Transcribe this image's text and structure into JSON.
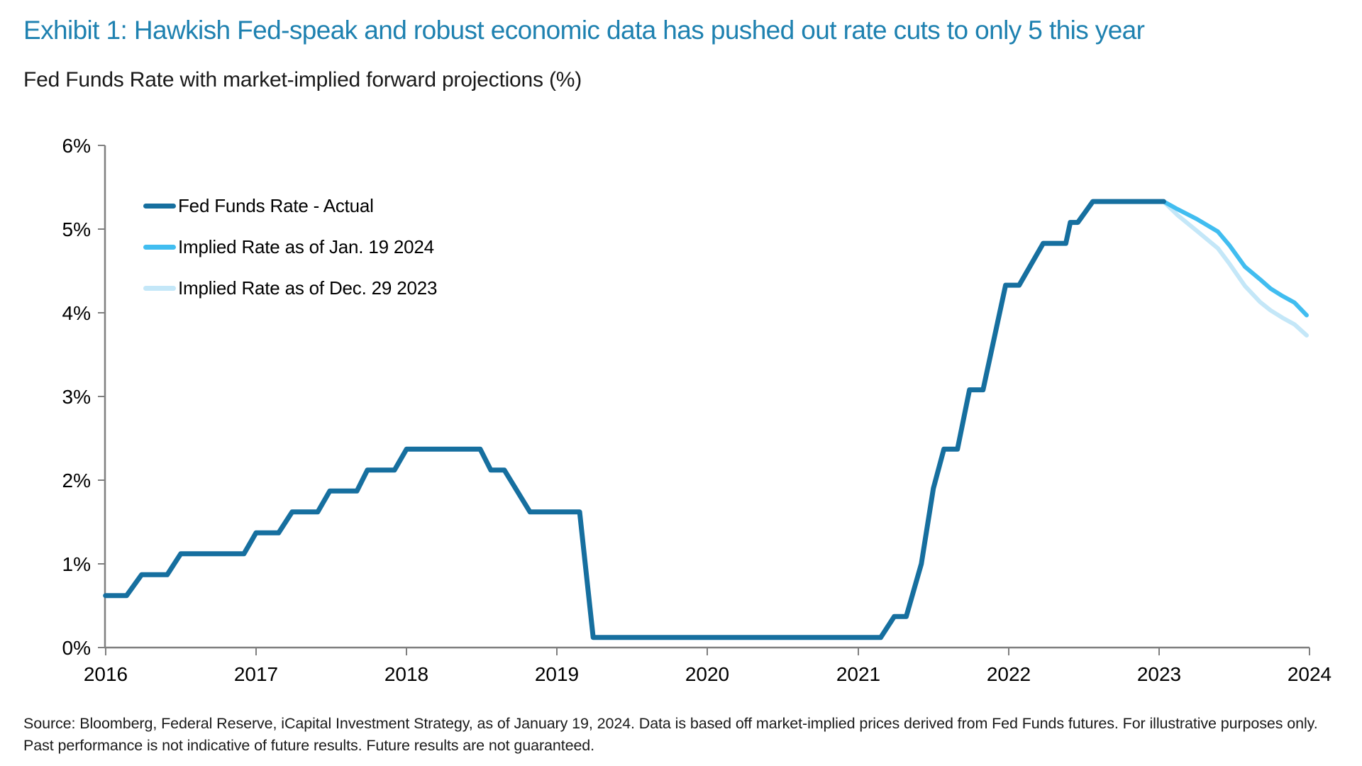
{
  "page": {
    "title": "Exhibit 1: Hawkish Fed-speak and robust economic data has pushed out rate cuts to only 5 this year",
    "subtitle": "Fed Funds Rate with market-implied forward projections (%)",
    "source_line1": "Source: Bloomberg, Federal Reserve, iCapital Investment Strategy, as of January 19, 2024. Data is based off market-implied prices derived from Fed Funds futures. For illustrative purposes only.",
    "source_line2": "Past performance is not indicative of future results. Future results are not guaranteed."
  },
  "colors": {
    "title_blue": "#1e81b0",
    "actual_line": "#166f9f",
    "implied_jan_line": "#41bdf0",
    "implied_dec_line": "#c4e7f8",
    "axis_gray": "#7f7f7f",
    "text_black": "#1a1a1a"
  },
  "chart_data": {
    "type": "line",
    "title": "Fed Funds Rate with market-implied forward projections (%)",
    "xlabel": "",
    "ylabel": "",
    "grid": false,
    "legend_position": "top-left inside plot",
    "x_axis": {
      "min": 2016,
      "max": 2024,
      "tick_labels": [
        "2016",
        "2017",
        "2018",
        "2019",
        "2020",
        "2021",
        "2022",
        "2023",
        "2024"
      ]
    },
    "y_axis": {
      "min": 0,
      "max": 6,
      "unit": "%",
      "tick_labels": [
        "0%",
        "1%",
        "2%",
        "3%",
        "4%",
        "5%",
        "6%"
      ]
    },
    "series": [
      {
        "name": "Fed Funds Rate - Actual",
        "color_key": "actual_line",
        "points": [
          [
            2016.0,
            0.62
          ],
          [
            2016.14,
            0.62
          ],
          [
            2016.24,
            0.87
          ],
          [
            2016.41,
            0.87
          ],
          [
            2016.5,
            1.12
          ],
          [
            2016.92,
            1.12
          ],
          [
            2017.0,
            1.37
          ],
          [
            2017.15,
            1.37
          ],
          [
            2017.24,
            1.62
          ],
          [
            2017.41,
            1.62
          ],
          [
            2017.49,
            1.87
          ],
          [
            2017.67,
            1.87
          ],
          [
            2017.74,
            2.12
          ],
          [
            2017.92,
            2.12
          ],
          [
            2018.0,
            2.37
          ],
          [
            2018.49,
            2.37
          ],
          [
            2018.56,
            2.12
          ],
          [
            2018.65,
            2.12
          ],
          [
            2018.82,
            1.62
          ],
          [
            2019.15,
            1.62
          ],
          [
            2019.24,
            0.12
          ],
          [
            2021.15,
            0.12
          ],
          [
            2021.24,
            0.37
          ],
          [
            2021.32,
            0.37
          ],
          [
            2021.42,
            1.0
          ],
          [
            2021.5,
            1.9
          ],
          [
            2021.57,
            2.37
          ],
          [
            2021.66,
            2.37
          ],
          [
            2021.74,
            3.08
          ],
          [
            2021.83,
            3.08
          ],
          [
            2021.98,
            4.33
          ],
          [
            2022.07,
            4.33
          ],
          [
            2022.23,
            4.83
          ],
          [
            2022.38,
            4.83
          ],
          [
            2022.41,
            5.08
          ],
          [
            2022.46,
            5.08
          ],
          [
            2022.56,
            5.33
          ],
          [
            2023.03,
            5.33
          ]
        ]
      },
      {
        "name": "Implied Rate as of Jan. 19 2024",
        "color_key": "implied_jan_line",
        "points": [
          [
            2023.03,
            5.33
          ],
          [
            2023.12,
            5.24
          ],
          [
            2023.25,
            5.12
          ],
          [
            2023.39,
            4.97
          ],
          [
            2023.47,
            4.8
          ],
          [
            2023.57,
            4.55
          ],
          [
            2023.67,
            4.4
          ],
          [
            2023.74,
            4.29
          ],
          [
            2023.82,
            4.2
          ],
          [
            2023.9,
            4.12
          ],
          [
            2023.98,
            3.97
          ]
        ]
      },
      {
        "name": "Implied Rate as of Dec. 29 2023",
        "color_key": "implied_dec_line",
        "points": [
          [
            2023.03,
            5.33
          ],
          [
            2023.12,
            5.17
          ],
          [
            2023.25,
            4.98
          ],
          [
            2023.39,
            4.77
          ],
          [
            2023.47,
            4.58
          ],
          [
            2023.57,
            4.32
          ],
          [
            2023.67,
            4.13
          ],
          [
            2023.74,
            4.03
          ],
          [
            2023.82,
            3.94
          ],
          [
            2023.9,
            3.86
          ],
          [
            2023.98,
            3.73
          ]
        ]
      }
    ]
  }
}
